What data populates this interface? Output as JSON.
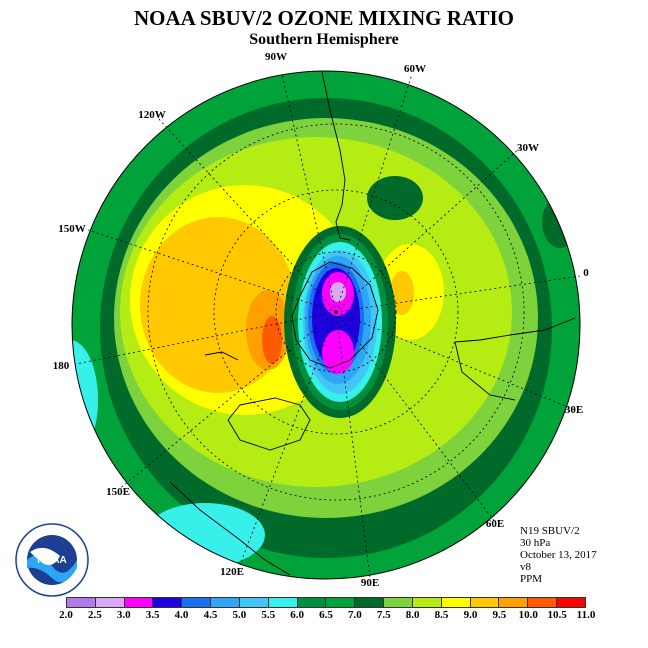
{
  "title": "NOAA SBUV/2 OZONE MIXING RATIO",
  "subtitle": "Southern Hemisphere",
  "longitude_labels": {
    "w90": "90W",
    "w60": "60W",
    "w30": "30W",
    "w120": "120W",
    "w150": "150W",
    "e0": "0",
    "e180": "180",
    "e30": "30E",
    "e60": "60E",
    "e90": "90E",
    "e120": "120E",
    "e150": "150E"
  },
  "info": {
    "satellite": "N19 SBUV/2",
    "level": "30 hPa",
    "date": "October 13, 2017",
    "version": "v8",
    "units": "PPM"
  },
  "logo_text": "NOAA",
  "legend": {
    "ticks": [
      "2.0",
      "2.5",
      "3.0",
      "3.5",
      "4.0",
      "4.5",
      "5.0",
      "5.5",
      "6.0",
      "6.5",
      "7.0",
      "7.5",
      "8.0",
      "8.5",
      "9.0",
      "9.5",
      "10.0",
      "10.5",
      "11.0"
    ],
    "colors": [
      "#b07ae8",
      "#d9a8f0",
      "#ff00ff",
      "#1e00e0",
      "#1c6ef0",
      "#2ea6f5",
      "#41c6f5",
      "#38f0ea",
      "#008f3c",
      "#00a23a",
      "#006a2a",
      "#7ed23c",
      "#b4ec14",
      "#ffff00",
      "#ffc800",
      "#ffa000",
      "#ff5a00",
      "#ff0000",
      "#8a4a2e"
    ]
  },
  "chart_data": {
    "type": "heatmap",
    "title": "NOAA SBUV/2 OZONE MIXING RATIO",
    "subtitle": "Southern Hemisphere",
    "units": "PPM",
    "color_scale_ticks": [
      2.0,
      2.5,
      3.0,
      3.5,
      4.0,
      4.5,
      5.0,
      5.5,
      6.0,
      6.5,
      7.0,
      7.5,
      8.0,
      8.5,
      9.0,
      9.5,
      10.0,
      10.5,
      11.0
    ]
  }
}
